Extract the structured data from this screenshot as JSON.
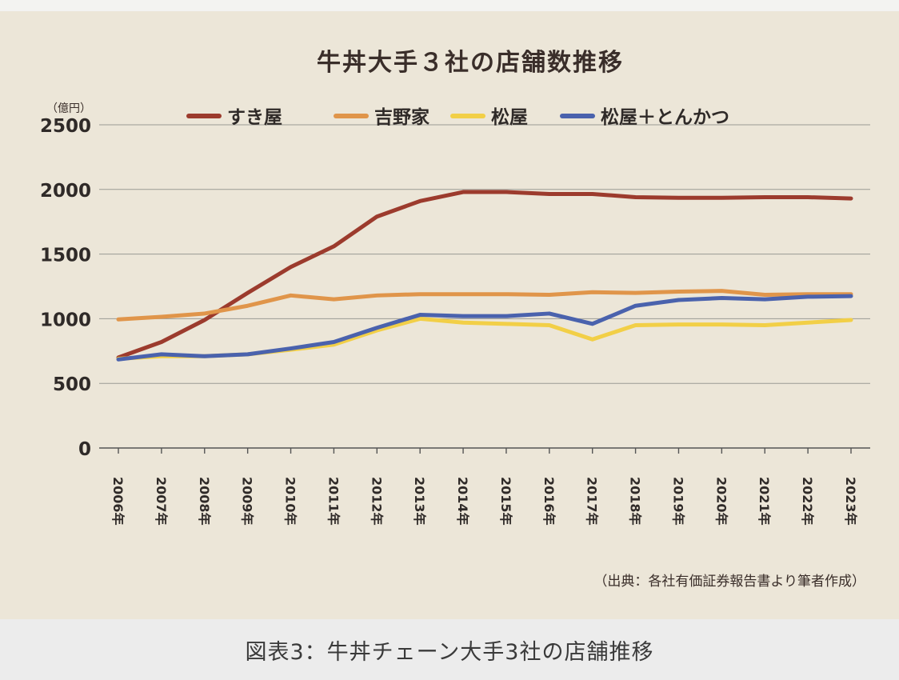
{
  "chart_data": {
    "type": "line",
    "title": "牛丼大手３社の店舗数推移",
    "unit_label": "（億円）",
    "source_note": "（出典：各社有価証券報告書より筆者作成）",
    "ylim": [
      0,
      2500
    ],
    "yticks": [
      0,
      500,
      1000,
      1500,
      2000,
      2500
    ],
    "grid": true,
    "legend_position": "top",
    "categories": [
      "2006年",
      "2007年",
      "2008年",
      "2009年",
      "2010年",
      "2011年",
      "2012年",
      "2013年",
      "2014年",
      "2015年",
      "2016年",
      "2017年",
      "2018年",
      "2019年",
      "2020年",
      "2021年",
      "2022年",
      "2023年"
    ],
    "series": [
      {
        "name": "すき屋",
        "color": "#9c3b2d",
        "values": [
          700,
          820,
          990,
          1200,
          1400,
          1560,
          1790,
          1910,
          1980,
          1980,
          1965,
          1965,
          1940,
          1935,
          1935,
          1940,
          1940,
          1930
        ]
      },
      {
        "name": "吉野家",
        "color": "#e0954a",
        "values": [
          995,
          1015,
          1040,
          1100,
          1180,
          1150,
          1180,
          1190,
          1190,
          1190,
          1185,
          1205,
          1200,
          1210,
          1215,
          1185,
          1190,
          1190
        ]
      },
      {
        "name": "松屋",
        "color": "#f2cf47",
        "values": [
          690,
          710,
          710,
          725,
          760,
          800,
          910,
          1000,
          970,
          960,
          950,
          840,
          950,
          955,
          955,
          950,
          970,
          990
        ]
      },
      {
        "name": "松屋＋とんかつ",
        "color": "#4a62ad",
        "values": [
          685,
          725,
          710,
          725,
          770,
          820,
          930,
          1030,
          1020,
          1020,
          1040,
          960,
          1100,
          1145,
          1160,
          1150,
          1170,
          1175
        ]
      }
    ]
  },
  "caption": "図表3：牛丼チェーン大手3社の店舗推移"
}
